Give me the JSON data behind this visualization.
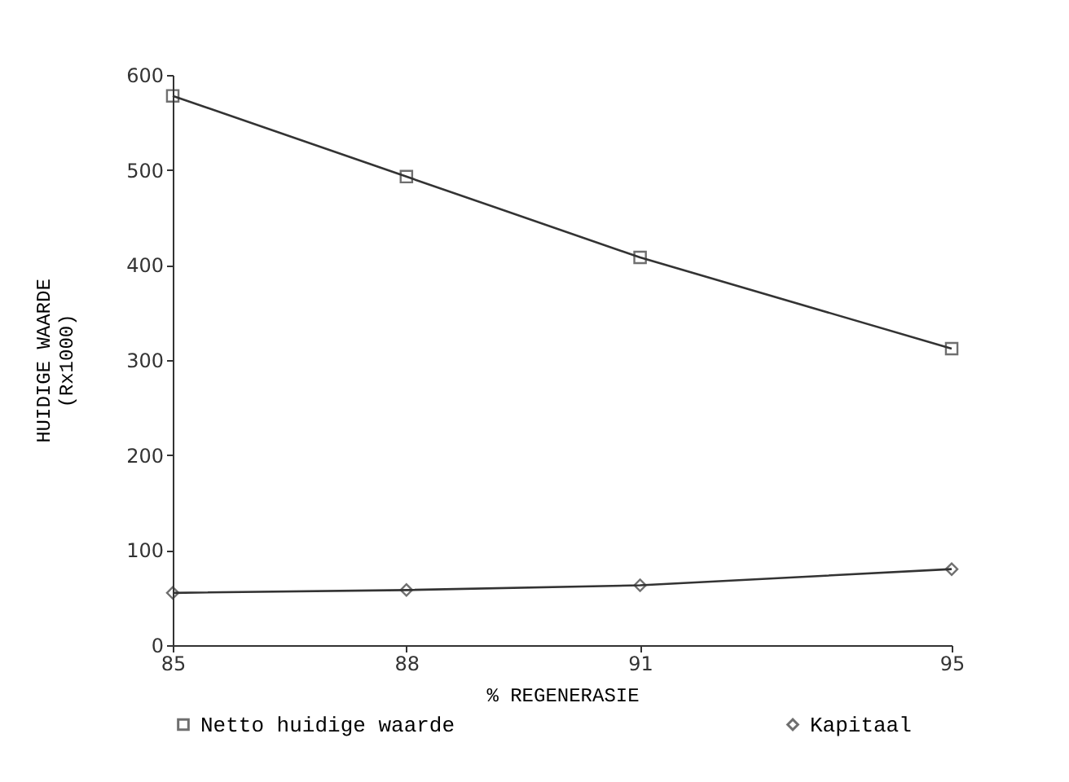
{
  "chart_data": {
    "type": "line",
    "xlabel": "% REGENERASIE",
    "ylabel": "HUIDIGE WAARDE\n(Rx1000)",
    "x": [
      85,
      88,
      91,
      95
    ],
    "xlim": [
      85,
      95
    ],
    "xticks": [
      85,
      88,
      91,
      95
    ],
    "ylim": [
      0,
      600
    ],
    "yticks": [
      0,
      100,
      200,
      300,
      400,
      500,
      600
    ],
    "legend": "bottom",
    "grid": false,
    "series": [
      {
        "name": "Netto huidige waarde",
        "color": "#333333",
        "marker": "square",
        "values": [
          578,
          493,
          408,
          312
        ]
      },
      {
        "name": "Kapitaal",
        "color": "#333333",
        "marker": "diamond",
        "values": [
          55,
          58,
          63,
          80
        ]
      }
    ]
  }
}
